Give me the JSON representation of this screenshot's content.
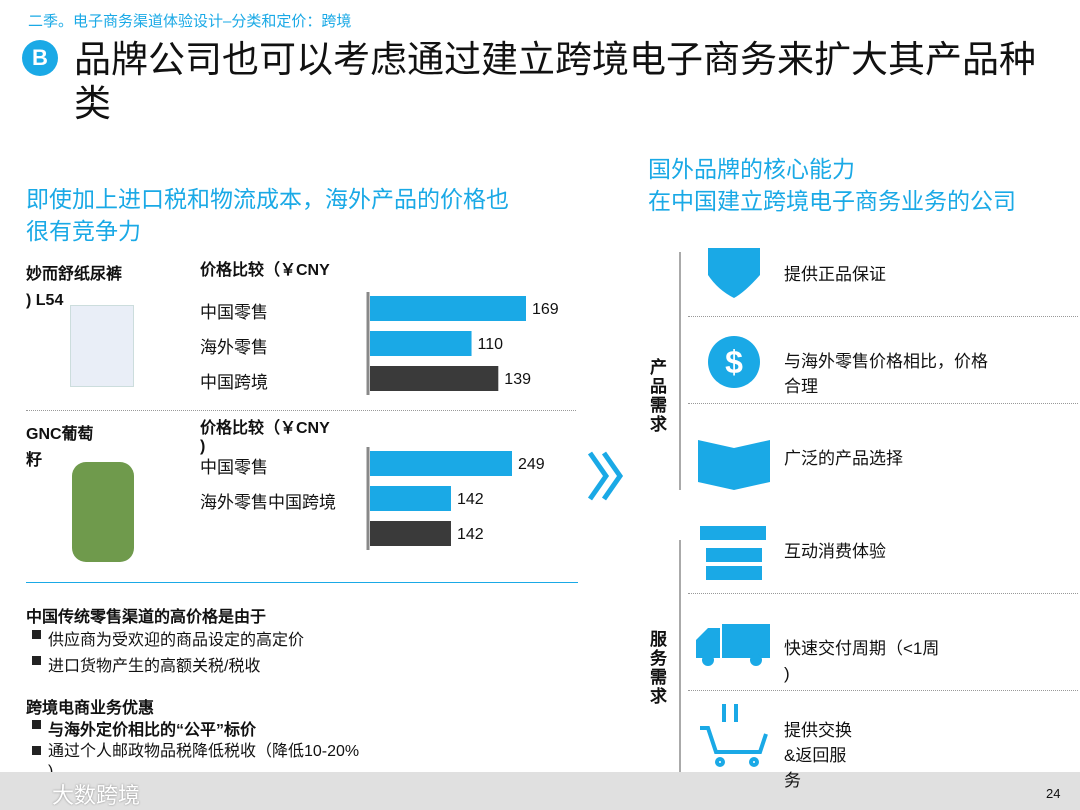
{
  "header": {
    "breadcrumb": "二季。电子商务渠道体验设计–分类和定价：跨境",
    "badge": "B",
    "title": "品牌公司也可以考虑通过建立跨境电子商务来扩大其产品种类"
  },
  "left": {
    "heading": "即使加上进口税和物流成本，海外产品的价格也很有竞争力",
    "products": [
      {
        "name": "妙而舒纸尿裤\n)  L54",
        "chart_title": "价格比较（￥CNY",
        "categories": [
          "中国零售",
          "海外零售",
          "中国跨境"
        ],
        "values": [
          169,
          110,
          139
        ],
        "colors": [
          "#1aa9e6",
          "#1aa9e6",
          "#3a3a3a"
        ]
      },
      {
        "name": "GNC葡萄\n籽",
        "chart_title": "价格比较（￥CNY\n)",
        "categories": [
          "中国零售",
          "海外零售中国跨境",
          null
        ],
        "values": [
          249,
          142,
          142
        ],
        "colors": [
          "#1aa9e6",
          "#1aa9e6",
          "#3a3a3a"
        ]
      }
    ],
    "reasons": {
      "heading": "中国传统零售渠道的高价格是由于",
      "items": [
        "供应商为受欢迎的商品设定的高定价",
        "进口货物产生的高额关税/税收"
      ]
    },
    "benefits": {
      "heading": "跨境电商业务优惠",
      "items": [
        "与海外定价相比的“公平”标价",
        "通过个人邮政物品税降低税收（降低10-20%\n)"
      ]
    }
  },
  "right": {
    "heading": "国外品牌的核心能力\n在中国建立跨境电子商务业务的公司",
    "groups": [
      {
        "label": "产品需求",
        "items": [
          "提供正品保证",
          "与海外零售价格相比，价格\n合理",
          "广泛的产品选择"
        ]
      },
      {
        "label": "服务需求",
        "items": [
          "互动消费体验",
          "快速交付周期（<1周\n)",
          "提供交换\n&返回服\n务"
        ]
      }
    ]
  },
  "footer": {
    "watermark": "大数跨境",
    "page": "24"
  }
}
